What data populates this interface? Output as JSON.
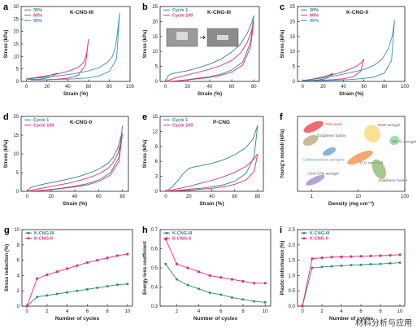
{
  "watermark": "材料分析与应用",
  "chart_data": [
    {
      "letter": "a",
      "type": "line",
      "title": "K-CNG-III",
      "xlabel": "Strain (%)",
      "ylabel": "Stress (kPa)",
      "xlim": [
        -5,
        100
      ],
      "ylim": [
        0,
        30
      ],
      "xticks": [
        0,
        20,
        40,
        60,
        80,
        100
      ],
      "yticks": [
        0,
        5,
        10,
        15,
        20,
        25,
        30
      ],
      "legend": "top-left",
      "series": [
        {
          "name": "30%",
          "color": "#2e8b6f",
          "x": [
            0,
            5,
            10,
            15,
            20,
            25,
            28,
            30,
            28,
            24,
            18,
            12,
            6,
            0
          ],
          "y": [
            1,
            1.3,
            1.5,
            1.8,
            2.2,
            2.7,
            3,
            3.4,
            2.8,
            1.8,
            1.2,
            0.8,
            0.6,
            1
          ]
        },
        {
          "name": "60%",
          "color": "#e8297c",
          "x": [
            0,
            10,
            20,
            30,
            40,
            50,
            55,
            58,
            60,
            57,
            50,
            40,
            30,
            20,
            10,
            0
          ],
          "y": [
            1,
            1.6,
            2.3,
            3,
            4,
            5.6,
            7.5,
            11,
            17,
            6.5,
            2.5,
            1.3,
            0.9,
            0.7,
            0.6,
            1
          ]
        },
        {
          "name": "90%",
          "color": "#3a8fbc",
          "x": [
            0,
            15,
            30,
            45,
            60,
            70,
            78,
            83,
            86,
            88,
            90,
            87,
            80,
            70,
            60,
            45,
            30,
            15,
            0
          ],
          "y": [
            1,
            1.5,
            2.2,
            3,
            4.2,
            5.5,
            7.5,
            10,
            14,
            20,
            27.5,
            9,
            4,
            2.2,
            1.4,
            1,
            0.8,
            0.7,
            1
          ]
        }
      ]
    },
    {
      "letter": "b",
      "type": "line",
      "title": "K-CNG-III",
      "xlabel": "Strain (%)",
      "ylabel": "Stress (kPa)",
      "xlim": [
        -5,
        85
      ],
      "ylim": [
        0,
        25
      ],
      "xticks": [
        0,
        20,
        40,
        60,
        80
      ],
      "yticks": [
        0,
        5,
        10,
        15,
        20,
        25
      ],
      "legend": "top-left",
      "series": [
        {
          "name": "Cycle 1",
          "color": "#2e8b6f",
          "x": [
            0,
            2,
            5,
            10,
            20,
            30,
            40,
            50,
            60,
            68,
            74,
            78,
            80,
            77,
            70,
            60,
            50,
            40,
            30,
            20,
            10,
            2
          ],
          "y": [
            0,
            1.8,
            2.5,
            2.9,
            3.6,
            4.6,
            5.8,
            7.4,
            9.8,
            12.5,
            16,
            19.5,
            22,
            13,
            6.5,
            3.8,
            2.4,
            1.6,
            1.1,
            0.6,
            0.2,
            0
          ]
        },
        {
          "name": "Cycle 100",
          "color": "#e8297c",
          "x": [
            0,
            5,
            10,
            20,
            30,
            40,
            50,
            60,
            68,
            74,
            78,
            80,
            77,
            70,
            60,
            50,
            40,
            30,
            20,
            10,
            2
          ],
          "y": [
            0,
            0.7,
            1.3,
            2.2,
            3.1,
            4.1,
            5.3,
            7,
            9.5,
            13,
            17,
            20,
            11.5,
            5.5,
            3.1,
            2,
            1.3,
            0.9,
            0.5,
            0.2,
            0
          ]
        }
      ]
    },
    {
      "letter": "c",
      "type": "line",
      "title": "K-CNG-0",
      "xlabel": "Strain (%)",
      "ylabel": "Stress (kPa)",
      "xlim": [
        -5,
        100
      ],
      "ylim": [
        0,
        25
      ],
      "xticks": [
        0,
        20,
        40,
        60,
        80,
        100
      ],
      "yticks": [
        0,
        5,
        10,
        15,
        20,
        25
      ],
      "legend": "top-left",
      "series": [
        {
          "name": "30%",
          "color": "#2e8b6f",
          "x": [
            0,
            5,
            10,
            15,
            20,
            25,
            30,
            27,
            22,
            15,
            8,
            0
          ],
          "y": [
            0.3,
            0.5,
            0.8,
            1.1,
            1.5,
            2,
            2.7,
            1.6,
            0.9,
            0.5,
            0.3,
            0.3
          ]
        },
        {
          "name": "60%",
          "color": "#e8297c",
          "x": [
            0,
            10,
            20,
            30,
            40,
            50,
            55,
            58,
            60,
            57,
            50,
            40,
            30,
            20,
            10,
            0
          ],
          "y": [
            0.3,
            0.8,
            1.5,
            2.3,
            3.3,
            4.6,
            5.6,
            6.5,
            7.5,
            3.5,
            1.6,
            0.9,
            0.6,
            0.4,
            0.3,
            0.3
          ]
        },
        {
          "name": "90%",
          "color": "#3a8fbc",
          "x": [
            0,
            15,
            30,
            45,
            60,
            70,
            78,
            84,
            88,
            90,
            87,
            80,
            70,
            60,
            45,
            30,
            15,
            0
          ],
          "y": [
            0.3,
            0.9,
            1.8,
            2.8,
            4,
            5.4,
            7.5,
            11,
            15.5,
            20.5,
            7,
            2.8,
            1.5,
            1,
            0.6,
            0.4,
            0.3,
            0.3
          ]
        }
      ]
    },
    {
      "letter": "d",
      "type": "line",
      "title": "K-CNG-0",
      "xlabel": "Strain (%)",
      "ylabel": "Stress (kPa)",
      "xlim": [
        -5,
        85
      ],
      "ylim": [
        0,
        20
      ],
      "xticks": [
        0,
        20,
        40,
        60,
        80
      ],
      "yticks": [
        0,
        5,
        10,
        15,
        20
      ],
      "legend": "top-left",
      "series": [
        {
          "name": "Cycle 1",
          "color": "#2e8b6f",
          "x": [
            0,
            3,
            8,
            15,
            25,
            35,
            45,
            55,
            62,
            68,
            72,
            76,
            79,
            80,
            77,
            70,
            60,
            50,
            40,
            30,
            20,
            10,
            2
          ],
          "y": [
            0,
            1,
            1.5,
            2,
            2.6,
            3.3,
            4.1,
            5.2,
            6.3,
            7.5,
            9,
            11.5,
            15,
            17.5,
            9,
            5,
            3,
            2,
            1.4,
            0.9,
            0.5,
            0.2,
            0
          ]
        },
        {
          "name": "Cycle 100",
          "color": "#e8297c",
          "x": [
            0,
            8,
            15,
            25,
            35,
            45,
            55,
            62,
            68,
            72,
            76,
            79,
            80,
            77,
            70,
            60,
            50,
            40,
            30,
            20,
            10,
            2
          ],
          "y": [
            0,
            0.6,
            1,
            1.6,
            2.2,
            3,
            4,
            5,
            6.2,
            7.6,
            10,
            13.5,
            15.5,
            8,
            4.4,
            2.6,
            1.7,
            1.2,
            0.8,
            0.4,
            0.2,
            0
          ]
        }
      ]
    },
    {
      "letter": "e",
      "type": "line",
      "title": "P-CNG",
      "xlabel": "Strain (%)",
      "ylabel": "Stress (kPa)",
      "xlim": [
        -5,
        85
      ],
      "ylim": [
        0,
        15
      ],
      "xticks": [
        0,
        20,
        40,
        60,
        80
      ],
      "yticks": [
        0,
        3,
        6,
        9,
        12,
        15
      ],
      "legend": "top-left",
      "series": [
        {
          "name": "Cycle 1",
          "color": "#2e8b6f",
          "x": [
            0,
            5,
            10,
            15,
            20,
            25,
            30,
            40,
            50,
            60,
            70,
            76,
            80,
            77,
            70,
            60,
            50,
            40,
            30,
            20,
            10,
            0
          ],
          "y": [
            0,
            0.8,
            2,
            3.5,
            4.6,
            4.9,
            5.1,
            5.6,
            6.3,
            7.3,
            8.8,
            10.5,
            13.2,
            7,
            3.6,
            2,
            1.3,
            0.9,
            0.6,
            0.4,
            0.2,
            0
          ]
        },
        {
          "name": "Cycle 100",
          "color": "#e8297c",
          "x": [
            0,
            10,
            20,
            30,
            40,
            50,
            60,
            70,
            76,
            80,
            77,
            70,
            60,
            50,
            40,
            30,
            20,
            10,
            0
          ],
          "y": [
            0,
            0.5,
            1,
            1.6,
            2.2,
            2.9,
            3.8,
            5,
            6.3,
            7.5,
            4,
            2.3,
            1.4,
            0.9,
            0.6,
            0.4,
            0.2,
            0.1,
            0
          ]
        }
      ]
    },
    {
      "letter": "f",
      "type": "scatter",
      "title": "",
      "xlabel": "Density (mg cm⁻³)",
      "ylabel": "Young's moduli (kPa)",
      "xscale": "log",
      "yscale": "log",
      "xlim": [
        0.5,
        100
      ],
      "ylim": [
        0.1,
        10000
      ],
      "xticks": [
        1,
        10,
        100
      ],
      "yticks": [],
      "regions": [
        {
          "label": "This work",
          "x": 1.1,
          "y": 2000,
          "rx": 0.23,
          "ry": 0.28,
          "color": "#e8393f",
          "lx": 2.0,
          "ly": 2500,
          "lcolor": "#e8393f"
        },
        {
          "label": "GNR aerogel",
          "x": 20,
          "y": 700,
          "rx": 0.17,
          "ry": 0.6,
          "color": "#f5d76e",
          "lx": 26,
          "ly": 2200,
          "lcolor": "#5a5a5a"
        },
        {
          "label": "RF-G aerogel",
          "x": 60,
          "y": 250,
          "rx": 0.11,
          "ry": 0.3,
          "color": "#7dd39a",
          "lx": 55,
          "ly": 170,
          "lcolor": "#5a5a5a"
        },
        {
          "label": "Graphene foams",
          "x": 0.95,
          "y": 250,
          "rx": 0.17,
          "ry": 0.3,
          "color": "#b7a271",
          "lx": 1.3,
          "ly": 450,
          "lcolor": "#5a5a5a"
        },
        {
          "label": "Carbonaceous aerogels",
          "x": 2.4,
          "y": 45,
          "rx": 0.15,
          "ry": 0.22,
          "color": "#5b9bd5",
          "lx": 0.65,
          "ly": 11,
          "lcolor": "#5b9bd5"
        },
        {
          "label": "C-G monolith",
          "x": 11,
          "y": 18,
          "rx": 0.3,
          "ry": 0.28,
          "color": "#f08a3e",
          "lx": 11,
          "ly": 6.5,
          "lcolor": "#5a5a5a"
        },
        {
          "label": "Graphene foams",
          "x": 28,
          "y": 3,
          "rx": 0.13,
          "ry": 0.7,
          "color": "#86b86a",
          "lx": 27,
          "ly": 0.45,
          "lcolor": "#5a5a5a"
        },
        {
          "label": "rGO-CNs aerogel",
          "x": 1.2,
          "y": 0.55,
          "rx": 0.22,
          "ry": 0.22,
          "color": "#9d86c8",
          "lx": 0.85,
          "ly": 1.3,
          "lcolor": "#5a5a5a"
        }
      ]
    },
    {
      "letter": "g",
      "type": "line",
      "title": "",
      "xlabel": "Number of cycles",
      "ylabel": "Stress reduction (%)",
      "xlim": [
        -0.5,
        10.5
      ],
      "ylim": [
        0,
        10
      ],
      "xticks": [
        0,
        2,
        4,
        6,
        8,
        10
      ],
      "yticks": [
        0,
        2,
        4,
        6,
        8,
        10
      ],
      "legend": "top-left",
      "series": [
        {
          "name": "K-CNG-III",
          "color": "#2e8b6f",
          "marker": "square",
          "x": [
            0,
            1,
            2,
            3,
            4,
            5,
            6,
            7,
            8,
            9,
            10
          ],
          "y": [
            0,
            1.2,
            1.4,
            1.6,
            1.8,
            2.0,
            2.2,
            2.4,
            2.6,
            2.8,
            2.9
          ]
        },
        {
          "name": "K-CNG-0",
          "color": "#e8297c",
          "marker": "circle",
          "x": [
            0,
            1,
            2,
            3,
            4,
            5,
            6,
            7,
            8,
            9,
            10
          ],
          "y": [
            0,
            3.6,
            4.1,
            4.5,
            4.9,
            5.3,
            5.7,
            6.0,
            6.3,
            6.6,
            6.8
          ]
        }
      ]
    },
    {
      "letter": "h",
      "type": "line",
      "title": "",
      "xlabel": "Number of cycles",
      "ylabel": "Energy loss coefficient",
      "xlim": [
        0.5,
        10.5
      ],
      "ylim": [
        0.3,
        0.7
      ],
      "xticks": [
        2,
        4,
        6,
        8,
        10
      ],
      "yticks": [
        0.3,
        0.4,
        0.5,
        0.6,
        0.7
      ],
      "legend": "top-left",
      "series": [
        {
          "name": "K-CNG-III",
          "color": "#2e8b6f",
          "marker": "square",
          "x": [
            1,
            2,
            3,
            4,
            5,
            6,
            7,
            8,
            9,
            10
          ],
          "y": [
            0.52,
            0.44,
            0.41,
            0.39,
            0.37,
            0.36,
            0.345,
            0.335,
            0.325,
            0.32
          ]
        },
        {
          "name": "K-CNG-0",
          "color": "#e8297c",
          "marker": "circle",
          "x": [
            1,
            2,
            3,
            4,
            5,
            6,
            7,
            8,
            9,
            10
          ],
          "y": [
            0.65,
            0.52,
            0.5,
            0.48,
            0.46,
            0.45,
            0.44,
            0.43,
            0.42,
            0.42
          ]
        }
      ]
    },
    {
      "letter": "i",
      "type": "line",
      "title": "",
      "xlabel": "Number of cycles",
      "ylabel": "Plastic deformation (%)",
      "xlim": [
        -0.5,
        10.5
      ],
      "ylim": [
        0,
        2.5
      ],
      "xticks": [
        0,
        2,
        4,
        6,
        8,
        10
      ],
      "yticks": [
        0,
        0.5,
        1.0,
        1.5,
        2.0,
        2.5
      ],
      "legend": "top-left",
      "series": [
        {
          "name": "K-CNG-III",
          "color": "#2e8b6f",
          "marker": "square",
          "x": [
            0,
            1,
            2,
            3,
            4,
            5,
            6,
            7,
            8,
            9,
            10
          ],
          "y": [
            0,
            1.25,
            1.28,
            1.3,
            1.32,
            1.34,
            1.35,
            1.37,
            1.38,
            1.4,
            1.42
          ]
        },
        {
          "name": "K-CNG-0",
          "color": "#e8297c",
          "marker": "circle",
          "x": [
            0,
            1,
            2,
            3,
            4,
            5,
            6,
            7,
            8,
            9,
            10
          ],
          "y": [
            0,
            1.55,
            1.58,
            1.6,
            1.61,
            1.62,
            1.63,
            1.64,
            1.65,
            1.66,
            1.68
          ]
        }
      ]
    }
  ]
}
